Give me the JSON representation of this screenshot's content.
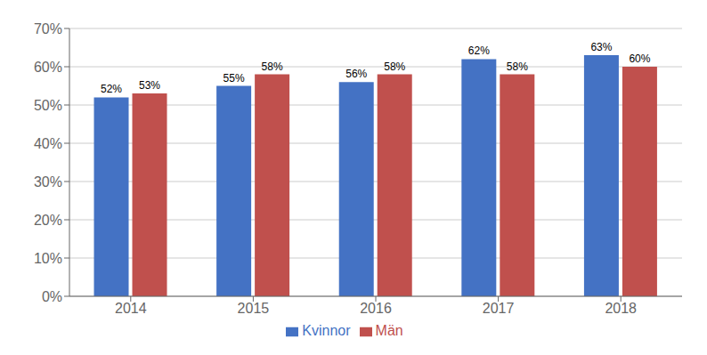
{
  "chart_data": {
    "type": "bar",
    "categories": [
      "2014",
      "2015",
      "2016",
      "2017",
      "2018"
    ],
    "series": [
      {
        "name": "Kvinnor",
        "color": "#4472C4",
        "values": [
          0.52,
          0.55,
          0.56,
          0.62,
          0.63
        ],
        "value_labels": [
          "52%",
          "55%",
          "56%",
          "62%",
          "63%"
        ]
      },
      {
        "name": "Män",
        "color": "#C0504D",
        "values": [
          0.53,
          0.58,
          0.58,
          0.58,
          0.6
        ],
        "value_labels": [
          "53%",
          "58%",
          "58%",
          "58%",
          "60%"
        ]
      }
    ],
    "ylim": [
      0,
      0.7
    ],
    "yticks": [
      {
        "value": 0,
        "label": "0%"
      },
      {
        "value": 0.1,
        "label": "10%"
      },
      {
        "value": 0.2,
        "label": "20%"
      },
      {
        "value": 0.3,
        "label": "30%"
      },
      {
        "value": 0.4,
        "label": "40%"
      },
      {
        "value": 0.5,
        "label": "50%"
      },
      {
        "value": 0.6,
        "label": "60%"
      },
      {
        "value": 0.7,
        "label": "70%"
      }
    ],
    "grid": true,
    "legend": "bottom",
    "data_labels": true
  }
}
